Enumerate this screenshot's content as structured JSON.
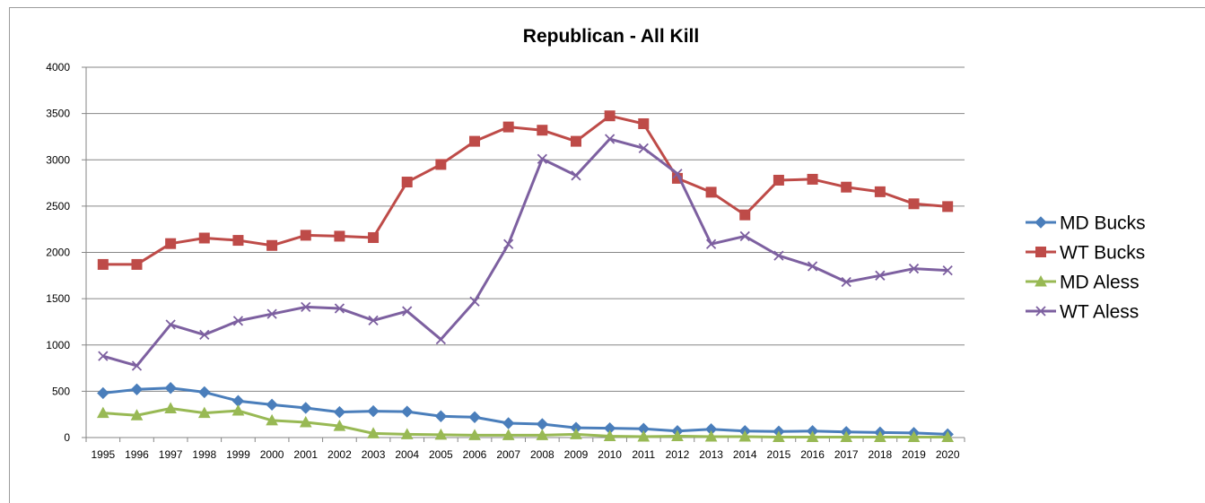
{
  "chart_data": {
    "type": "line",
    "title": "Republican - All Kill",
    "xlabel": "",
    "ylabel": "",
    "ylim": [
      0,
      4000
    ],
    "yticks": [
      0,
      500,
      1000,
      1500,
      2000,
      2500,
      3000,
      3500,
      4000
    ],
    "grid": "horizontal",
    "legend_position": "right",
    "categories": [
      "1995",
      "1996",
      "1997",
      "1998",
      "1999",
      "2000",
      "2001",
      "2002",
      "2003",
      "2004",
      "2005",
      "2006",
      "2007",
      "2008",
      "2009",
      "2010",
      "2011",
      "2012",
      "2013",
      "2014",
      "2015",
      "2016",
      "2017",
      "2018",
      "2019",
      "2020"
    ],
    "series": [
      {
        "name": "MD Bucks",
        "color": "#4a7ebb",
        "marker": "diamond",
        "values": [
          480,
          520,
          535,
          490,
          395,
          355,
          320,
          275,
          285,
          280,
          230,
          220,
          155,
          145,
          105,
          100,
          95,
          70,
          90,
          70,
          65,
          70,
          60,
          55,
          50,
          35
        ]
      },
      {
        "name": "WT Bucks",
        "color": "#be4b48",
        "marker": "square",
        "values": [
          1870,
          1870,
          2095,
          2155,
          2130,
          2075,
          2185,
          2175,
          2160,
          2760,
          2950,
          3200,
          3355,
          3320,
          3200,
          3475,
          3390,
          2800,
          2650,
          2405,
          2780,
          2790,
          2705,
          2655,
          2525,
          2495
        ]
      },
      {
        "name": "MD Aless",
        "color": "#98b954",
        "marker": "triangle",
        "values": [
          265,
          240,
          315,
          265,
          290,
          185,
          165,
          125,
          45,
          35,
          30,
          25,
          25,
          25,
          35,
          15,
          10,
          15,
          10,
          10,
          5,
          5,
          5,
          5,
          5,
          5
        ]
      },
      {
        "name": "WT Aless",
        "color": "#7d60a0",
        "marker": "x",
        "values": [
          880,
          775,
          1220,
          1110,
          1260,
          1335,
          1410,
          1395,
          1265,
          1365,
          1060,
          1470,
          2090,
          3010,
          2830,
          3225,
          3125,
          2850,
          2090,
          2175,
          1965,
          1850,
          1680,
          1750,
          1825,
          1805
        ]
      }
    ]
  }
}
